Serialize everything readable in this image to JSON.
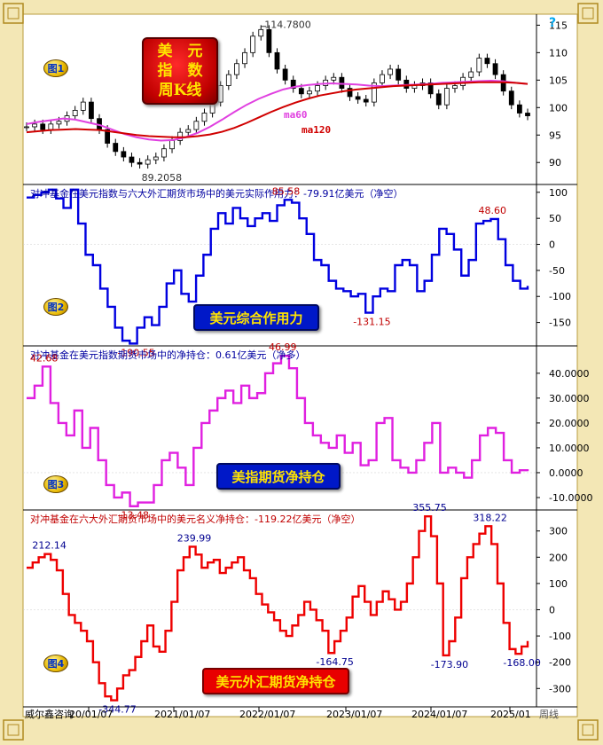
{
  "title_box": {
    "line1": "美　元",
    "line2": "指　数",
    "line3": "周K线"
  },
  "question_mark": "?",
  "footer": {
    "company": "威尔鑫咨询",
    "period": "周线"
  },
  "x_axis": {
    "ticks": [
      "20/01/07",
      "2021/01/07",
      "2022/01/07",
      "2023/01/07",
      "2024/01/07",
      "2025/01"
    ]
  },
  "colors": {
    "candle": "#000000",
    "ma60": "#e040e0",
    "ma120": "#d00000",
    "panel2": "#0000e0",
    "panel3": "#e020e0",
    "panel4": "#ee0000",
    "frame": "#f3e7b5"
  },
  "chart_data": [
    {
      "id": "panel1",
      "badge": "图1",
      "type": "line",
      "series": [
        {
          "name": "ma60",
          "values": [
            97,
            97.4,
            97.7,
            98,
            97.8,
            97.3,
            96.8,
            96,
            95.2,
            94.6,
            94.2,
            94,
            94.1,
            94.6,
            95.4,
            96.5,
            97.8,
            99.2,
            100.5,
            101.6,
            102.5,
            103.3,
            103.8,
            104.1,
            104.3,
            104.4,
            104.3,
            104.2,
            104,
            103.9,
            104,
            104.1,
            104.2,
            104.3,
            104.5,
            104.6,
            104.7,
            104.8,
            104.9,
            104.8,
            104.5,
            104.3
          ]
        },
        {
          "name": "ma120",
          "values": [
            95.5,
            95.7,
            95.9,
            96,
            96.1,
            96,
            95.9,
            95.6,
            95.3,
            95,
            94.8,
            94.7,
            94.6,
            94.6,
            94.8,
            95.1,
            95.6,
            96.3,
            97.2,
            98.2,
            99.2,
            100.1,
            100.9,
            101.6,
            102.2,
            102.6,
            103,
            103.3,
            103.5,
            103.7,
            103.9,
            104,
            104.1,
            104.2,
            104.3,
            104.4,
            104.5,
            104.6,
            104.6,
            104.6,
            104.5,
            104.3
          ]
        },
        {
          "name": "close",
          "values": [
            96.5,
            97,
            96,
            97,
            97.5,
            98.5,
            99.5,
            101,
            98,
            96,
            93.5,
            92,
            91,
            90,
            89.7,
            90.5,
            91,
            92.5,
            94,
            95.5,
            96,
            97.5,
            99,
            101,
            104,
            106,
            108,
            110,
            113,
            114.2,
            110,
            107,
            105,
            103.5,
            102.5,
            103,
            104,
            105,
            105.5,
            103.5,
            102,
            101.5,
            101,
            104.5,
            106,
            107,
            105,
            103.5,
            104,
            104.5,
            102.5,
            100.5,
            103.5,
            104,
            105.5,
            106.5,
            109,
            108,
            106,
            103,
            100.5,
            99,
            98.5
          ]
        }
      ],
      "annotations": [
        "114.7800",
        "89.2058",
        "ma60",
        "ma120"
      ],
      "yticks": [
        "115",
        "110",
        "105",
        "100",
        "95",
        "90"
      ],
      "ylim": [
        86,
        117
      ]
    },
    {
      "id": "panel2",
      "badge": "图2",
      "type": "line",
      "title": "对冲基金在美元指数与六大外汇期货市场中的美元实际作用力：-79.91亿美元（净空）",
      "label_box": "美元综合作用力",
      "series": [
        {
          "name": "",
          "values": [
            90,
            95,
            100,
            105,
            88,
            70,
            105,
            40,
            -20,
            -40,
            -85,
            -120,
            -160,
            -185,
            -190.55,
            -160,
            -140,
            -155,
            -120,
            -75,
            -50,
            -95,
            -110,
            -60,
            -20,
            30,
            60,
            40,
            70,
            50,
            35,
            50,
            60,
            45,
            75,
            85.58,
            80,
            50,
            20,
            -30,
            -40,
            -70,
            -85,
            -90,
            -100,
            -95,
            -131.15,
            -100,
            -85,
            -90,
            -40,
            -30,
            -40,
            -90,
            -70,
            -20,
            30,
            20,
            -10,
            -60,
            -30,
            40,
            45,
            48.6,
            10,
            -40,
            -70,
            -85,
            -79.91
          ]
        }
      ],
      "annotations": [
        "85.58",
        "48.60",
        "-190.55",
        "-131.15"
      ],
      "yticks": [
        "100",
        "50",
        "0",
        "-50",
        "-100",
        "-150"
      ],
      "ylim": [
        -195,
        115
      ]
    },
    {
      "id": "panel3",
      "badge": "图3",
      "type": "line",
      "title": "对冲基金在美元指数期货市场中的净持仓：0.61亿美元（净多）",
      "label_box": "美指期货净持仓",
      "series": [
        {
          "name": "",
          "values": [
            30,
            35,
            42.68,
            28,
            20,
            15,
            25,
            10,
            18,
            5,
            -5,
            -10,
            -8,
            -13.48,
            -12,
            -12,
            -5,
            5,
            8,
            2,
            -5,
            10,
            20,
            25,
            30,
            33,
            28,
            35,
            30,
            32,
            40,
            44,
            46.99,
            42,
            30,
            20,
            15,
            12,
            10,
            15,
            8,
            12,
            3,
            5,
            20,
            22,
            5,
            2,
            0,
            5,
            12,
            20,
            0,
            2,
            0,
            -2,
            5,
            15,
            18,
            16,
            5,
            0,
            1,
            0.61
          ]
        }
      ],
      "annotations": [
        "42.68",
        "46.99",
        "-13.48"
      ],
      "yticks": [
        "40.0000",
        "30.0000",
        "20.0000",
        "10.0000",
        "0.0000",
        "-10.0000"
      ],
      "ylim": [
        -15,
        51
      ]
    },
    {
      "id": "panel4",
      "badge": "图4",
      "type": "line",
      "title": "对冲基金在六大外汇期货市场中的美元名义净持仓：-119.22亿美元（净空）",
      "label_box": "美元外汇期货净持仓",
      "series": [
        {
          "name": "",
          "values": [
            160,
            180,
            200,
            212.14,
            190,
            150,
            60,
            -20,
            -50,
            -80,
            -120,
            -200,
            -280,
            -330,
            -344.77,
            -300,
            -250,
            -230,
            -180,
            -120,
            -60,
            -140,
            -160,
            -80,
            30,
            150,
            200,
            239.99,
            210,
            160,
            180,
            190,
            140,
            160,
            180,
            200,
            150,
            120,
            60,
            20,
            -10,
            -40,
            -80,
            -100,
            -60,
            -20,
            30,
            0,
            -40,
            -80,
            -164.75,
            -120,
            -80,
            -30,
            50,
            90,
            30,
            -20,
            30,
            70,
            40,
            0,
            30,
            100,
            200,
            300,
            355.75,
            280,
            100,
            -173.9,
            -120,
            -30,
            120,
            200,
            250,
            290,
            318.22,
            250,
            100,
            -50,
            -150,
            -168,
            -140,
            -119.22
          ]
        }
      ],
      "annotations": [
        "212.14",
        "239.99",
        "355.75",
        "318.22",
        "-344.77",
        "-164.75",
        "-173.90",
        "-168.00"
      ],
      "yticks": [
        "300",
        "200",
        "100",
        "0",
        "-100",
        "-200",
        "-300"
      ],
      "ylim": [
        -370,
        380
      ]
    }
  ]
}
